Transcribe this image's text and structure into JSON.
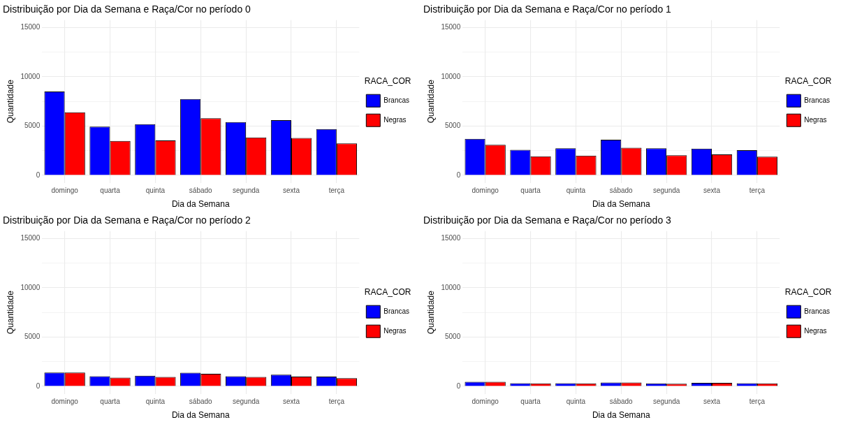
{
  "chart_data": [
    {
      "type": "bar",
      "title": "Distribuição por Dia da Semana e Raça/Cor no período 0",
      "xlabel": "Dia da Semana",
      "ylabel": "Quantidade",
      "legend_title": "RACA_COR",
      "categories": [
        "domingo",
        "quarta",
        "quinta",
        "sábado",
        "segunda",
        "sexta",
        "terça"
      ],
      "series": [
        {
          "name": "Brancas",
          "color": "#0000ff",
          "values": [
            8500,
            4950,
            5200,
            7750,
            5400,
            5600,
            4700
          ]
        },
        {
          "name": "Negras",
          "color": "#ff0000",
          "values": [
            6400,
            3500,
            3550,
            5800,
            3850,
            3800,
            3250
          ]
        }
      ],
      "ylim": [
        -750,
        15750
      ],
      "yticks": [
        0,
        {
          "value": 2500,
          "label": null
        },
        5000,
        {
          "value": 7500,
          "label": null
        },
        10000,
        {
          "value": 12500,
          "label": null
        },
        15000
      ],
      "grid": true,
      "legend": "right"
    },
    {
      "type": "bar",
      "title": "Distribuição por Dia da Semana e Raça/Cor no período 1",
      "xlabel": "Dia da Semana",
      "ylabel": "Quantidade",
      "legend_title": "RACA_COR",
      "categories": [
        "domingo",
        "quarta",
        "quinta",
        "sábado",
        "segunda",
        "sexta",
        "terça"
      ],
      "series": [
        {
          "name": "Brancas",
          "color": "#0000ff",
          "values": [
            3700,
            2580,
            2740,
            3610,
            2750,
            2720,
            2550
          ]
        },
        {
          "name": "Negras",
          "color": "#ff0000",
          "values": [
            3100,
            1930,
            2010,
            2800,
            2040,
            2120,
            1900
          ]
        }
      ],
      "ylim": [
        -750,
        15750
      ],
      "yticks": [
        0,
        {
          "value": 2500,
          "label": null
        },
        5000,
        {
          "value": 7500,
          "label": null
        },
        10000,
        {
          "value": 12500,
          "label": null
        },
        15000
      ],
      "grid": true,
      "legend": "right"
    },
    {
      "type": "bar",
      "title": "Distribuição por Dia da Semana e Raça/Cor no período 2",
      "xlabel": "Dia da Semana",
      "ylabel": "Quantidade",
      "legend_title": "RACA_COR",
      "categories": [
        "domingo",
        "quarta",
        "quinta",
        "sábado",
        "segunda",
        "sexta",
        "terça"
      ],
      "series": [
        {
          "name": "Brancas",
          "color": "#0000ff",
          "values": [
            1400,
            1030,
            1080,
            1380,
            1030,
            1190,
            1000
          ]
        },
        {
          "name": "Negras",
          "color": "#ff0000",
          "values": [
            1400,
            890,
            950,
            1270,
            950,
            1000,
            840
          ]
        }
      ],
      "ylim": [
        -750,
        15750
      ],
      "yticks": [
        0,
        {
          "value": 2500,
          "label": null
        },
        5000,
        {
          "value": 7500,
          "label": null
        },
        10000,
        {
          "value": 12500,
          "label": null
        },
        15000
      ],
      "grid": true,
      "legend": "right"
    },
    {
      "type": "bar",
      "title": "Distribuição por Dia da Semana e Raça/Cor no período 3",
      "xlabel": "Dia da Semana",
      "ylabel": "Quantidade",
      "legend_title": "RACA_COR",
      "categories": [
        "domingo",
        "quarta",
        "quinta",
        "sábado",
        "segunda",
        "sexta",
        "terça"
      ],
      "series": [
        {
          "name": "Brancas",
          "color": "#0000ff",
          "values": [
            460,
            320,
            320,
            400,
            300,
            350,
            320
          ]
        },
        {
          "name": "Negras",
          "color": "#ff0000",
          "values": [
            460,
            300,
            300,
            400,
            270,
            350,
            300
          ]
        }
      ],
      "ylim": [
        -750,
        15750
      ],
      "yticks": [
        0,
        {
          "value": 2500,
          "label": null
        },
        5000,
        {
          "value": 7500,
          "label": null
        },
        10000,
        {
          "value": 12500,
          "label": null
        },
        15000
      ],
      "grid": true,
      "legend": "right"
    }
  ]
}
